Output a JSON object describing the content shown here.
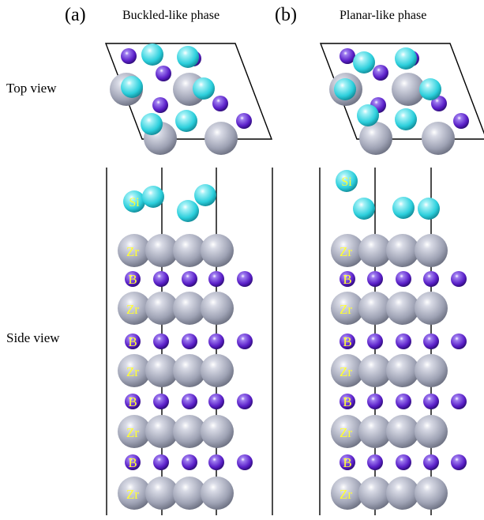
{
  "panels": [
    {
      "letter": "(a)",
      "title": "Buckled-like phase"
    },
    {
      "letter": "(b)",
      "title": "Planar-like phase"
    }
  ],
  "view_labels": {
    "top": "Top view",
    "side": "Side view"
  },
  "element_labels": {
    "si": "Si",
    "zr": "Zr",
    "b": "B"
  },
  "colors": {
    "si": "#2ccfdc",
    "zr": "#9ea2b4",
    "b": "#5a1fc8",
    "line": "#000000",
    "atom_label": "#ffff33"
  }
}
